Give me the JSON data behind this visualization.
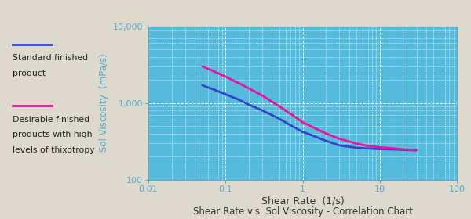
{
  "title": "Shear Rate v.s. Sol Viscosity - Correlation Chart",
  "xlabel": "Shear Rate  (1/s)",
  "ylabel": "Sol Viscosity  (mPa/s)",
  "xlim": [
    0.01,
    100
  ],
  "ylim": [
    100,
    10000
  ],
  "bg_outer": "#ddd9cc",
  "bg_plot": "#55bbdd",
  "bg_legend": "#ffffff",
  "grid_color": "#ffffff",
  "axis_label_color": "#55aacc",
  "tick_label_color": "#55aacc",
  "title_color": "#333333",
  "line1_color": "#3344cc",
  "line1_label1": "Standard finished",
  "line1_label2": "product",
  "line2_color": "#ee1199",
  "line2_label1": "Desirable finished",
  "line2_label2": "products with high",
  "line2_label3": "levels of thixotropy",
  "line1_x": [
    0.05,
    0.07,
    0.1,
    0.15,
    0.2,
    0.3,
    0.5,
    0.7,
    1.0,
    1.5,
    2.0,
    3.0,
    5.0,
    7.0,
    10.0,
    15.0,
    20.0,
    30.0
  ],
  "line1_y": [
    1700,
    1500,
    1300,
    1100,
    950,
    800,
    620,
    510,
    420,
    360,
    320,
    280,
    260,
    255,
    250,
    248,
    245,
    242
  ],
  "line2_x": [
    0.05,
    0.07,
    0.1,
    0.15,
    0.2,
    0.3,
    0.5,
    0.7,
    1.0,
    1.5,
    2.0,
    3.0,
    5.0,
    7.0,
    10.0,
    15.0,
    20.0,
    30.0
  ],
  "line2_y": [
    3000,
    2600,
    2200,
    1800,
    1550,
    1250,
    900,
    720,
    560,
    460,
    400,
    340,
    295,
    275,
    265,
    255,
    248,
    242
  ]
}
